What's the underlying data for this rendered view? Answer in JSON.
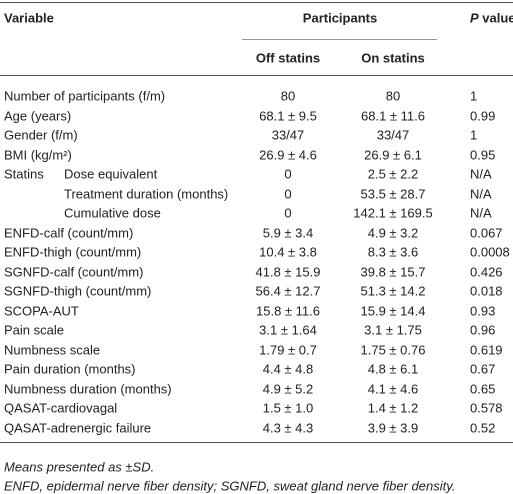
{
  "header": {
    "variable": "Variable",
    "participants": "Participants",
    "p_value": {
      "italic": "P",
      "rest": "value"
    },
    "off": "Off statins",
    "on": "On statins"
  },
  "rows": [
    {
      "label": "Number of participants (f/m)",
      "off": "80",
      "on": "80",
      "p": "1"
    },
    {
      "label": "Age (years)",
      "off": "68.1 ± 9.5",
      "on": "68.1 ± 11.6",
      "p": "0.99"
    },
    {
      "label": "Gender (f/m)",
      "off": "33/47",
      "on": "33/47",
      "p": "1"
    },
    {
      "label": "BMI (kg/m²)",
      "off": "26.9 ± 4.6",
      "on": "26.9 ± 6.1",
      "p": "0.95"
    },
    {
      "label": "Statins",
      "sublabel": "Dose equivalent",
      "off": "0",
      "on": "2.5 ± 2.2",
      "p": "N/A"
    },
    {
      "sublabel": "Treatment duration (months)",
      "off": "0",
      "on": "53.5 ± 28.7",
      "p": "N/A"
    },
    {
      "sublabel": "Cumulative dose",
      "off": "0",
      "on": "142.1 ± 169.5",
      "p": "N/A"
    },
    {
      "label": "ENFD-calf (count/mm)",
      "off": "5.9 ± 3.4",
      "on": "4.9 ± 3.2",
      "p": "0.067"
    },
    {
      "label": "ENFD-thigh (count/mm)",
      "off": "10.4 ± 3.8",
      "on": "8.3 ± 3.6",
      "p": "0.0008"
    },
    {
      "label": "SGNFD-calf (count/mm)",
      "off": "41.8 ± 15.9",
      "on": "39.8 ± 15.7",
      "p": "0.426"
    },
    {
      "label": "SGNFD-thigh (count/mm)",
      "off": "56.4 ± 12.7",
      "on": "51.3 ± 14.2",
      "p": "0.018"
    },
    {
      "label": "SCOPA-AUT",
      "off": "15.8 ± 11.6",
      "on": "15.9 ± 14.4",
      "p": "0.93"
    },
    {
      "label": "Pain scale",
      "off": "3.1 ± 1.64",
      "on": "3.1 ± 1.75",
      "p": "0.96"
    },
    {
      "label": "Numbness scale",
      "off": "1.79 ± 0.7",
      "on": "1.75 ± 0.76",
      "p": "0.619"
    },
    {
      "label": "Pain duration (months)",
      "off": "4.4 ± 4.8",
      "on": "4.8 ± 6.1",
      "p": "0.67"
    },
    {
      "label": "Numbness duration (months)",
      "off": "4.9 ± 5.2",
      "on": "4.1 ± 4.6",
      "p": "0.65"
    },
    {
      "label": "QASAT-cardiovagal",
      "off": "1.5 ± 1.0",
      "on": "1.4 ± 1.2",
      "p": "0.578"
    },
    {
      "label": "QASAT-adrenergic failure",
      "off": "4.3 ± 4.3",
      "on": "3.9 ± 3.9",
      "p": "0.52"
    }
  ],
  "footnotes": [
    "Means presented as ±SD.",
    "ENFD, epidermal nerve fiber density; SGNFD, sweat gland nerve fiber density."
  ]
}
